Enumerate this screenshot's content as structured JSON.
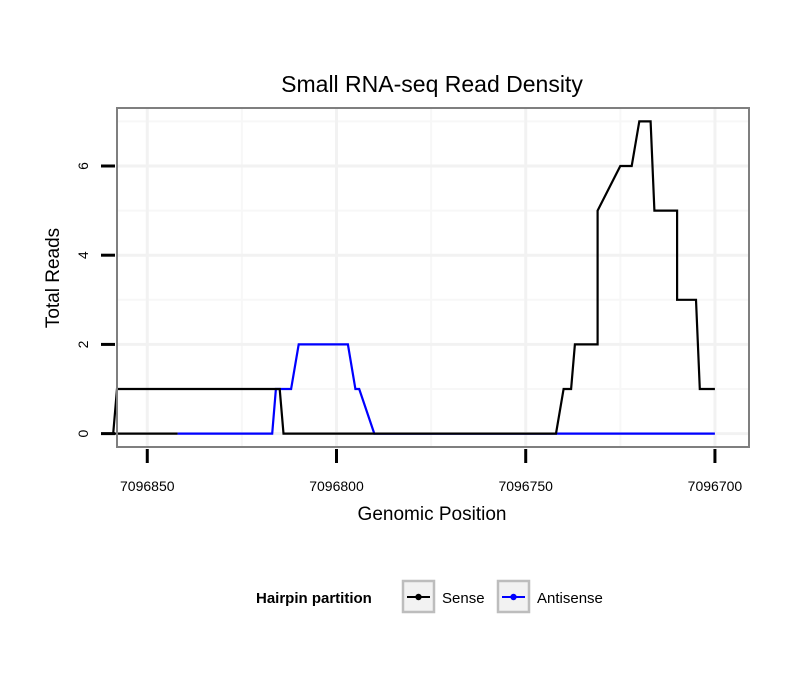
{
  "chart_data": {
    "type": "line",
    "title": "Small RNA-seq Read Density",
    "xlabel": "Genomic Position",
    "ylabel": "Total Reads",
    "x_reversed": true,
    "xlim": [
      7096858,
      7096691
    ],
    "ylim": [
      -0.3,
      7.3
    ],
    "x_ticks": [
      7096850,
      7096800,
      7096750,
      7096700
    ],
    "x_tick_labels": [
      "7096850",
      "7096800",
      "7096750",
      "7096700"
    ],
    "y_ticks": [
      0,
      2,
      4,
      6
    ],
    "y_tick_labels": [
      "0",
      "2",
      "4",
      "6"
    ],
    "grid": true,
    "legend": {
      "title": "Hairpin partition",
      "position": "bottom"
    },
    "series": [
      {
        "name": "Sense",
        "color": "#000000",
        "x": [
          7096842,
          7096859,
          7096858,
          7096816,
          7096815,
          7096814,
          7096790,
          7096760,
          7096742,
          7096740,
          7096738,
          7096737,
          7096731,
          7096731,
          7096725,
          7096722,
          7096720,
          7096717,
          7096716,
          7096710,
          7096710,
          7096705,
          7096704,
          7096700
        ],
        "y": [
          0,
          0,
          1,
          1,
          1,
          0,
          0,
          0,
          0,
          1,
          1,
          2,
          2,
          5,
          6,
          6,
          7,
          7,
          5,
          5,
          3,
          3,
          1,
          1
        ]
      },
      {
        "name": "Antisense",
        "color": "#0000ff",
        "x": [
          7096842,
          7096817,
          7096816,
          7096812,
          7096810,
          7096797,
          7096795,
          7096794,
          7096790,
          7096789,
          7096760,
          7096700
        ],
        "y": [
          0,
          0,
          1,
          1,
          2,
          2,
          1,
          1,
          0,
          0,
          0,
          0
        ]
      }
    ]
  }
}
